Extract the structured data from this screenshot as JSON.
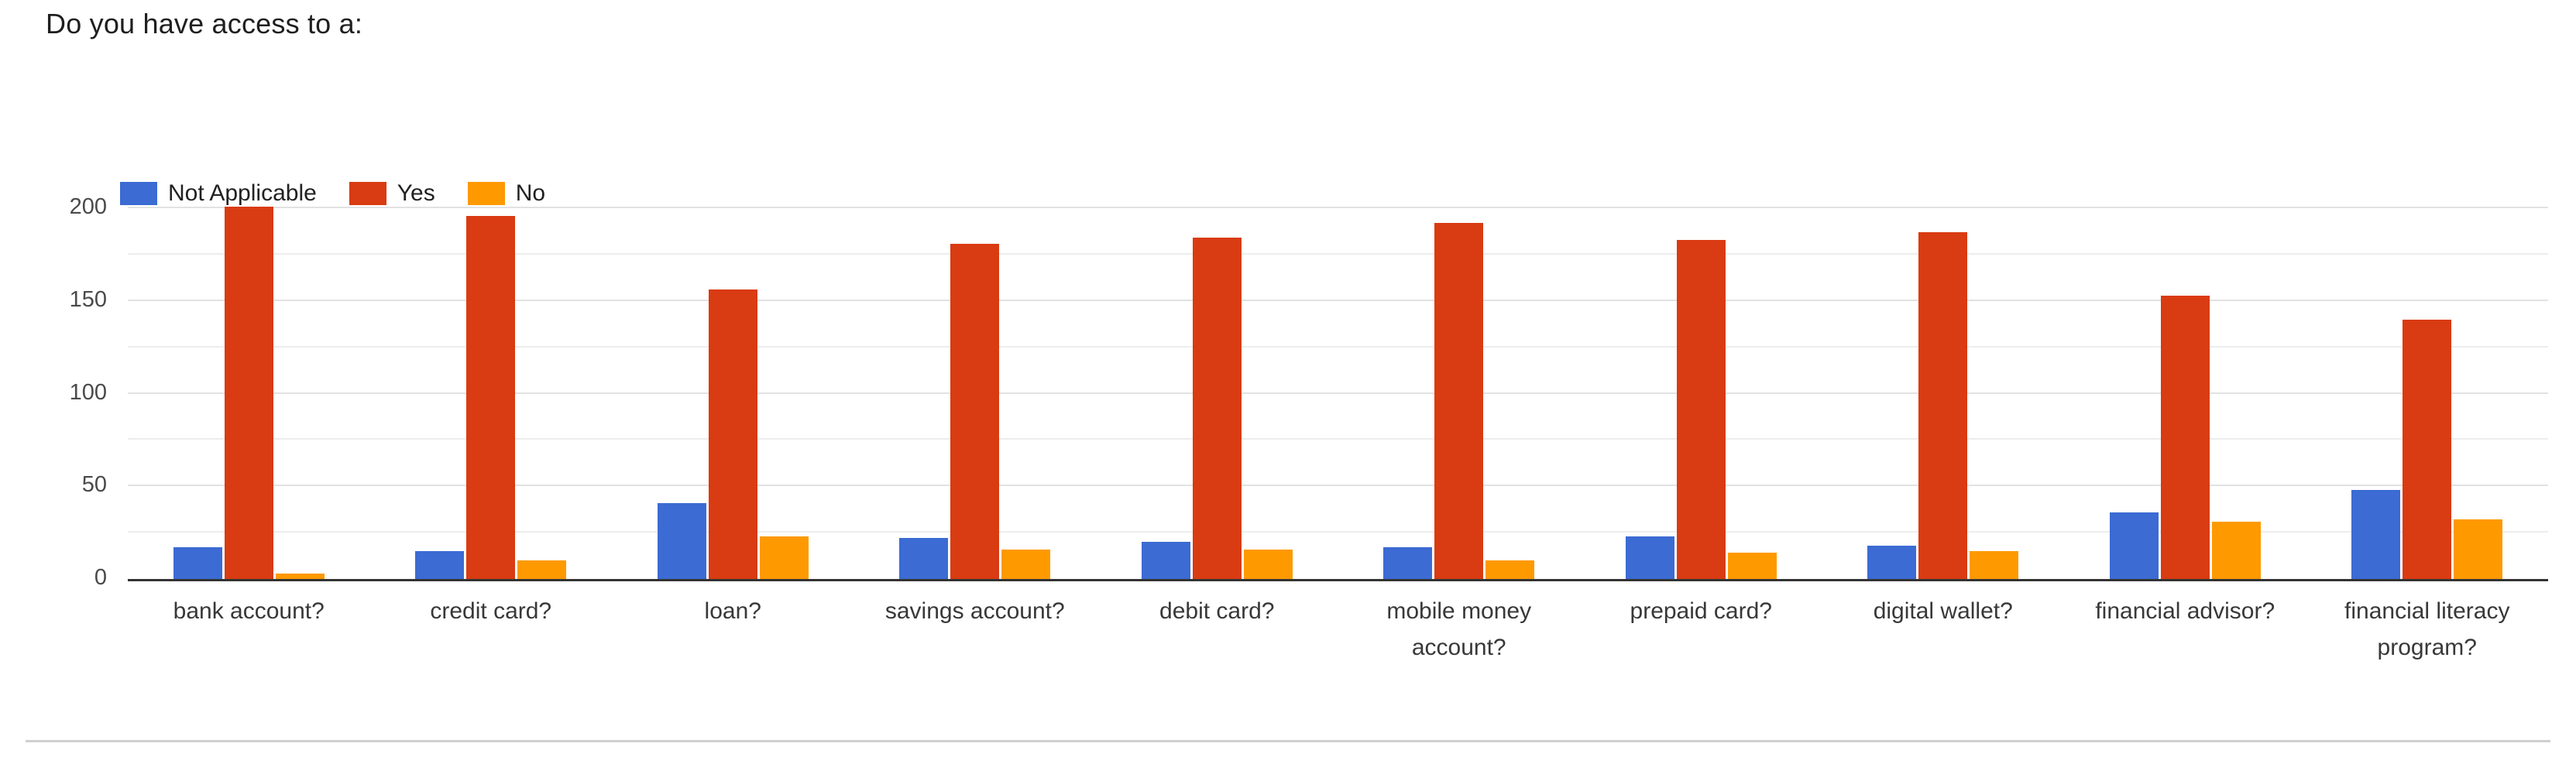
{
  "title": "Do you have access to a:",
  "chart_data": {
    "type": "bar",
    "title": "Do you have access to a:",
    "categories": [
      "bank account?",
      "credit card?",
      "loan?",
      "savings account?",
      "debit card?",
      "mobile money account?",
      "prepaid card?",
      "digital wallet?",
      "financial advisor?",
      "financial literacy program?"
    ],
    "series": [
      {
        "name": "Not Applicable",
        "color": "#3b6bd3",
        "values": [
          17,
          15,
          41,
          22,
          20,
          17,
          23,
          18,
          36,
          48
        ]
      },
      {
        "name": "Yes",
        "color": "#d93b12",
        "values": [
          201,
          196,
          156,
          181,
          184,
          192,
          183,
          187,
          153,
          140
        ]
      },
      {
        "name": "No",
        "color": "#ff9900",
        "values": [
          3,
          10,
          23,
          16,
          16,
          10,
          14,
          15,
          31,
          32
        ]
      }
    ],
    "xlabel": "",
    "ylabel": "",
    "ylim": [
      0,
      200
    ],
    "yticks": [
      0,
      50,
      100,
      150,
      200
    ],
    "minor_gridlines_every": 25,
    "grid": true,
    "legend_position": "top-left",
    "axis_color": "#333333",
    "gridline_color": "#e2e2e2"
  }
}
